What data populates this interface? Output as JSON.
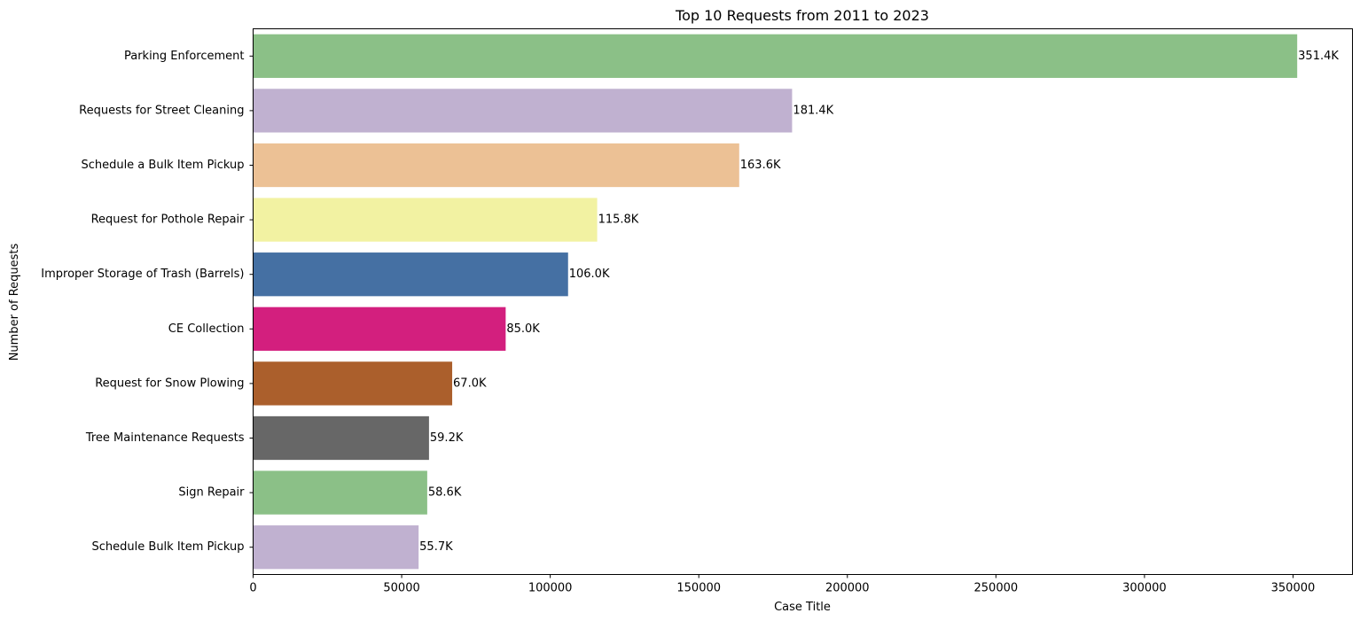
{
  "chart_data": {
    "type": "bar",
    "orientation": "horizontal",
    "title": "Top 10 Requests from 2011 to 2023",
    "xlabel": "Case Title",
    "ylabel": "Number of Requests",
    "categories": [
      "Parking Enforcement",
      "Requests for Street Cleaning",
      "Schedule a Bulk Item Pickup",
      "Request for Pothole Repair",
      "Improper Storage of Trash (Barrels)",
      "CE Collection",
      "Request for Snow Plowing",
      "Tree Maintenance Requests",
      "Sign Repair",
      "Schedule Bulk Item Pickup"
    ],
    "values": [
      351400,
      181400,
      163600,
      115800,
      106000,
      85000,
      67000,
      59200,
      58600,
      55700
    ],
    "data_labels": [
      "351.4K",
      "181.4K",
      "163.6K",
      "115.8K",
      "106.0K",
      "85.0K",
      "67.0K",
      "59.2K",
      "58.6K",
      "55.7K"
    ],
    "colors": [
      "#8bc087",
      "#c0b1d0",
      "#ecc195",
      "#f2f2a2",
      "#4570a3",
      "#d31f7e",
      "#ab5f2c",
      "#676767",
      "#8bc087",
      "#c0b1d0"
    ],
    "xlim": [
      0,
      370000
    ],
    "xticks": [
      0,
      50000,
      100000,
      150000,
      200000,
      250000,
      300000,
      350000
    ],
    "xtick_labels": [
      "0",
      "50000",
      "100000",
      "150000",
      "200000",
      "250000",
      "300000",
      "350000"
    ],
    "grid": false,
    "legend": "none"
  }
}
